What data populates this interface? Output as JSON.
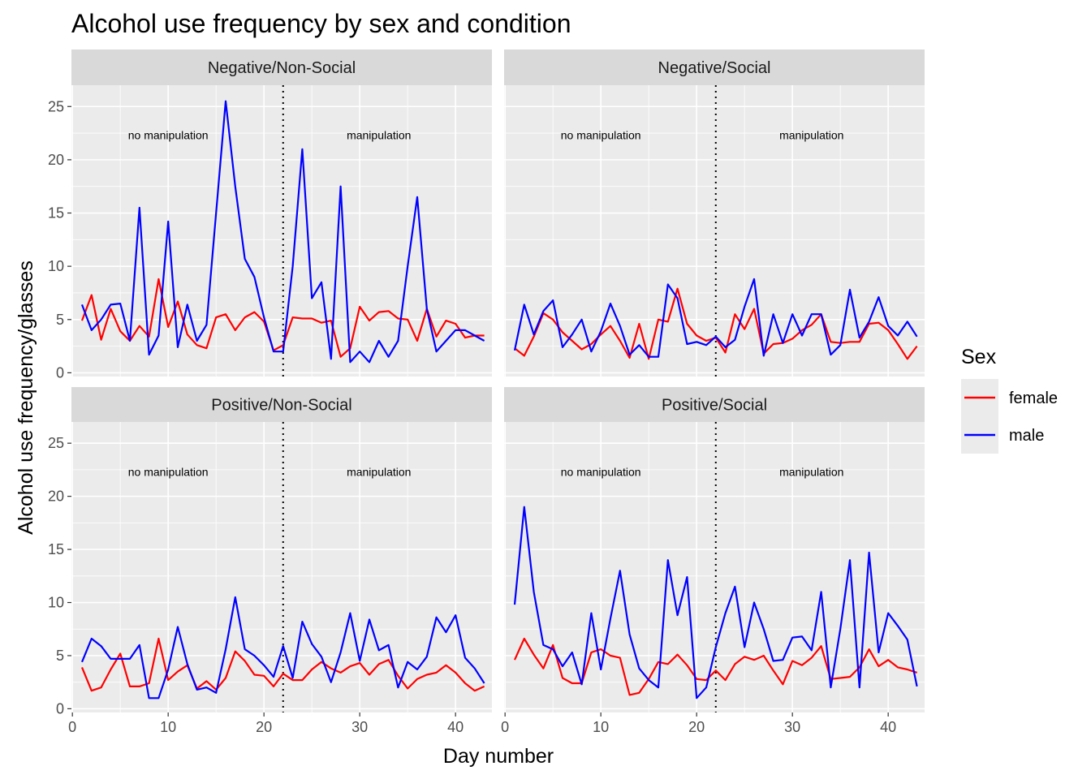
{
  "chart_data": {
    "type": "line",
    "title": "Alcohol use frequency by sex and condition",
    "xlabel": "Day number",
    "ylabel": "Alcohol use frequency/glasses",
    "xlim": [
      0,
      44
    ],
    "ylim": [
      0,
      27
    ],
    "x_ticks": [
      0,
      10,
      20,
      30,
      40
    ],
    "y_ticks": [
      0,
      5,
      10,
      15,
      20,
      25
    ],
    "grid": true,
    "legend": {
      "title": "Sex",
      "position": "right",
      "entries": [
        {
          "label": "female",
          "color": "#ff0000"
        },
        {
          "label": "male",
          "color": "#0000ff"
        }
      ]
    },
    "reference_line": {
      "x": 22,
      "style": "dotted"
    },
    "annotations": [
      {
        "text": "no manipulation",
        "x": 10,
        "y": 22.3
      },
      {
        "text": "manipulation",
        "x": 32,
        "y": 22.3
      }
    ],
    "x": [
      1,
      2,
      3,
      4,
      5,
      6,
      7,
      8,
      9,
      10,
      11,
      12,
      13,
      14,
      15,
      16,
      17,
      18,
      19,
      20,
      21,
      22,
      23,
      24,
      25,
      26,
      27,
      28,
      29,
      30,
      31,
      32,
      33,
      34,
      35,
      36,
      37,
      38,
      39,
      40,
      41,
      42,
      43
    ],
    "panels": [
      {
        "name": "Negative/Non-Social",
        "series": [
          {
            "name": "female",
            "values": [
              4.9,
              7.3,
              3.1,
              6.0,
              3.9,
              3.0,
              4.4,
              3.4,
              8.8,
              4.3,
              6.7,
              3.6,
              2.6,
              2.3,
              5.2,
              5.5,
              4.0,
              5.2,
              5.7,
              4.8,
              2.1,
              2.6,
              5.2,
              5.1,
              5.1,
              4.7,
              4.9,
              1.5,
              2.3,
              6.2,
              4.9,
              5.7,
              5.8,
              5.1,
              5.0,
              3.0,
              6.0,
              3.4,
              4.9,
              4.6,
              3.3,
              3.5,
              3.5
            ]
          },
          {
            "name": "male",
            "values": [
              6.4,
              4.0,
              5.0,
              6.4,
              6.5,
              3.0,
              15.5,
              1.7,
              3.5,
              14.2,
              2.4,
              6.4,
              3.0,
              4.5,
              15.0,
              25.5,
              17.5,
              10.7,
              9.0,
              5.2,
              2.0,
              2.0,
              10.0,
              21.0,
              7.0,
              8.5,
              1.3,
              17.5,
              1.0,
              2.0,
              1.0,
              3.0,
              1.5,
              3.0,
              10.0,
              16.5,
              6.0,
              2.0,
              3.0,
              4.0,
              4.0,
              3.5,
              3.0
            ]
          }
        ]
      },
      {
        "name": "Negative/Social",
        "series": [
          {
            "name": "female",
            "values": [
              2.3,
              1.6,
              3.4,
              5.6,
              5.0,
              3.8,
              3.0,
              2.2,
              2.7,
              3.6,
              4.4,
              3.0,
              1.4,
              4.6,
              1.3,
              5.0,
              4.8,
              7.9,
              4.6,
              3.5,
              3.0,
              3.3,
              1.9,
              5.5,
              4.1,
              6.0,
              1.8,
              2.7,
              2.8,
              3.2,
              4.0,
              4.5,
              5.5,
              2.9,
              2.8,
              2.9,
              2.9,
              4.6,
              4.7,
              4.0,
              2.7,
              1.3,
              2.5
            ]
          },
          {
            "name": "male",
            "values": [
              2.1,
              6.4,
              3.6,
              5.8,
              6.8,
              2.4,
              3.6,
              5.0,
              2.0,
              3.9,
              6.5,
              4.4,
              1.7,
              2.6,
              1.5,
              1.5,
              8.3,
              7.0,
              2.7,
              2.9,
              2.6,
              3.4,
              2.4,
              3.1,
              6.2,
              8.8,
              1.6,
              5.5,
              2.8,
              5.5,
              3.5,
              5.5,
              5.5,
              1.7,
              2.6,
              7.8,
              3.3,
              4.8,
              7.1,
              4.4,
              3.5,
              4.8,
              3.4
            ]
          }
        ]
      },
      {
        "name": "Positive/Non-Social",
        "series": [
          {
            "name": "female",
            "values": [
              3.9,
              1.7,
              2.0,
              3.7,
              5.2,
              2.1,
              2.1,
              2.4,
              6.6,
              2.7,
              3.5,
              4.1,
              1.9,
              2.6,
              1.8,
              2.9,
              5.4,
              4.5,
              3.2,
              3.1,
              2.1,
              3.3,
              2.7,
              2.7,
              3.7,
              4.4,
              3.8,
              3.4,
              4.0,
              4.3,
              3.2,
              4.2,
              4.6,
              3.1,
              1.9,
              2.8,
              3.2,
              3.4,
              4.1,
              3.4,
              2.4,
              1.7,
              2.1
            ]
          },
          {
            "name": "male",
            "values": [
              4.4,
              6.6,
              5.9,
              4.7,
              4.7,
              4.7,
              6.0,
              1.0,
              1.0,
              3.7,
              7.7,
              4.2,
              1.8,
              2.0,
              1.5,
              5.6,
              10.5,
              5.6,
              5.0,
              4.1,
              3.0,
              5.9,
              2.9,
              8.2,
              6.1,
              4.9,
              2.5,
              5.3,
              9.0,
              4.5,
              8.4,
              5.5,
              6.0,
              2.0,
              4.4,
              3.7,
              4.9,
              8.6,
              7.2,
              8.8,
              4.8,
              3.8,
              2.4
            ]
          }
        ]
      },
      {
        "name": "Positive/Social",
        "series": [
          {
            "name": "female",
            "values": [
              4.6,
              6.6,
              5.1,
              3.8,
              6.0,
              2.9,
              2.4,
              2.4,
              5.3,
              5.6,
              5.0,
              4.8,
              1.3,
              1.5,
              2.8,
              4.4,
              4.2,
              5.1,
              4.1,
              2.8,
              2.7,
              3.6,
              2.7,
              4.2,
              4.9,
              4.6,
              5.0,
              3.6,
              2.3,
              4.5,
              4.1,
              4.8,
              5.9,
              2.8,
              2.9,
              3.0,
              3.9,
              5.6,
              4.0,
              4.6,
              3.9,
              3.7,
              3.4
            ]
          },
          {
            "name": "male",
            "values": [
              9.8,
              19.0,
              11.0,
              6.0,
              5.6,
              4.0,
              5.3,
              2.3,
              9.0,
              3.7,
              8.5,
              13.0,
              7.0,
              3.8,
              2.7,
              2.0,
              14.0,
              8.8,
              12.4,
              1.0,
              2.0,
              5.8,
              9.0,
              11.5,
              5.8,
              10.0,
              7.5,
              4.5,
              4.6,
              6.7,
              6.8,
              5.5,
              11.0,
              2.0,
              7.5,
              14.0,
              2.0,
              14.7,
              5.3,
              9.0,
              7.8,
              6.5,
              2.1
            ]
          }
        ]
      }
    ]
  }
}
